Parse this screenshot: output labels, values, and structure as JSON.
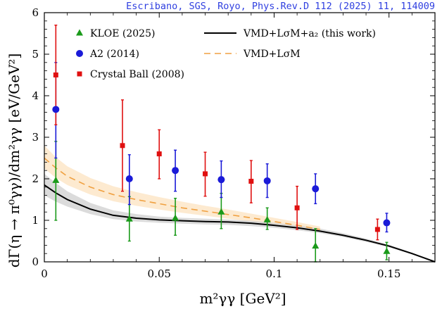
{
  "citation": "Escribano, SGS, Royo, Phys.Rev.D 112 (2025) 11, 114009",
  "chart_data": {
    "type": "scatter",
    "xlabel": "m²γγ [GeV²]",
    "ylabel": "dΓ(η → π⁰γγ)/dm²γγ   [eV/GeV²]",
    "xlim": [
      0,
      0.17
    ],
    "ylim": [
      0,
      6
    ],
    "xticks": [
      0,
      0.05,
      0.1,
      0.15
    ],
    "xtick_labels": [
      "0",
      "0.05",
      "0.1",
      "0.15"
    ],
    "yticks": [
      0,
      1,
      2,
      3,
      4,
      5,
      6
    ],
    "ytick_labels": [
      "0",
      "1",
      "2",
      "3",
      "4",
      "5",
      "6"
    ],
    "legend_position": "top",
    "series": [
      {
        "name": "KLOE (2025)",
        "marker": "triangle",
        "color": "#1a9a1a",
        "points": [
          {
            "x": 0.005,
            "y": 1.96,
            "lo": 1.0,
            "hi": 2.9
          },
          {
            "x": 0.037,
            "y": 1.03,
            "lo": 0.5,
            "hi": 1.57
          },
          {
            "x": 0.057,
            "y": 1.05,
            "lo": 0.64,
            "hi": 1.53
          },
          {
            "x": 0.077,
            "y": 1.2,
            "lo": 0.8,
            "hi": 1.65
          },
          {
            "x": 0.097,
            "y": 1.01,
            "lo": 0.78,
            "hi": 1.3
          },
          {
            "x": 0.118,
            "y": 0.38,
            "lo": 0.0,
            "hi": 0.8
          },
          {
            "x": 0.149,
            "y": 0.25,
            "lo": 0.05,
            "hi": 0.47
          }
        ]
      },
      {
        "name": "A2 (2014)",
        "marker": "circle",
        "color": "#1a1ad8",
        "points": [
          {
            "x": 0.005,
            "y": 3.67,
            "lo": 2.5,
            "hi": 4.8
          },
          {
            "x": 0.037,
            "y": 2.0,
            "lo": 1.38,
            "hi": 2.58
          },
          {
            "x": 0.057,
            "y": 2.2,
            "lo": 1.7,
            "hi": 2.69
          },
          {
            "x": 0.077,
            "y": 1.98,
            "lo": 1.55,
            "hi": 2.43
          },
          {
            "x": 0.097,
            "y": 1.95,
            "lo": 1.55,
            "hi": 2.36
          },
          {
            "x": 0.118,
            "y": 1.76,
            "lo": 1.4,
            "hi": 2.12
          },
          {
            "x": 0.149,
            "y": 0.94,
            "lo": 0.72,
            "hi": 1.17
          }
        ]
      },
      {
        "name": "Crystal Ball (2008)",
        "marker": "square",
        "color": "#e01010",
        "points": [
          {
            "x": 0.005,
            "y": 4.5,
            "lo": 3.3,
            "hi": 5.7
          },
          {
            "x": 0.034,
            "y": 2.8,
            "lo": 1.7,
            "hi": 3.9
          },
          {
            "x": 0.05,
            "y": 2.6,
            "lo": 2.0,
            "hi": 3.18
          },
          {
            "x": 0.07,
            "y": 2.12,
            "lo": 1.58,
            "hi": 2.64
          },
          {
            "x": 0.09,
            "y": 1.94,
            "lo": 1.42,
            "hi": 2.44
          },
          {
            "x": 0.11,
            "y": 1.3,
            "lo": 0.78,
            "hi": 1.82
          },
          {
            "x": 0.145,
            "y": 0.78,
            "lo": 0.53,
            "hi": 1.03
          }
        ]
      }
    ],
    "curves": [
      {
        "name": "VMD+LσM+a₂ (this work)",
        "style": "solid",
        "color": "#000000",
        "band_color": "#cfcfcf",
        "x": [
          0,
          0.005,
          0.01,
          0.02,
          0.03,
          0.04,
          0.05,
          0.06,
          0.07,
          0.08,
          0.09,
          0.1,
          0.11,
          0.12,
          0.13,
          0.14,
          0.15,
          0.16,
          0.165,
          0.17
        ],
        "y": [
          1.85,
          1.66,
          1.5,
          1.27,
          1.12,
          1.05,
          1.01,
          0.99,
          0.97,
          0.96,
          0.93,
          0.88,
          0.82,
          0.74,
          0.64,
          0.52,
          0.38,
          0.2,
          0.1,
          0.0
        ],
        "band_lo": [
          1.6,
          1.45,
          1.33,
          1.15,
          1.03,
          0.97,
          0.94,
          0.92,
          0.9,
          0.89,
          0.86,
          0.82,
          0.76,
          0.69,
          0.6,
          0.48,
          0.35,
          0.18,
          0.09,
          0.0
        ],
        "band_hi": [
          2.12,
          1.9,
          1.7,
          1.42,
          1.24,
          1.15,
          1.09,
          1.06,
          1.04,
          1.02,
          0.99,
          0.94,
          0.88,
          0.8,
          0.69,
          0.56,
          0.41,
          0.22,
          0.11,
          0.0
        ]
      },
      {
        "name": "VMD+LσM",
        "style": "dashed",
        "color": "#f0a040",
        "band_color": "#fde6c8",
        "x": [
          0,
          0.005,
          0.01,
          0.02,
          0.03,
          0.04,
          0.05,
          0.06,
          0.07,
          0.08,
          0.09,
          0.1,
          0.11,
          0.12
        ],
        "y": [
          2.5,
          2.26,
          2.06,
          1.8,
          1.62,
          1.5,
          1.4,
          1.3,
          1.22,
          1.14,
          1.06,
          0.97,
          0.88,
          0.78
        ],
        "band_lo": [
          2.25,
          2.02,
          1.85,
          1.62,
          1.46,
          1.35,
          1.26,
          1.18,
          1.11,
          1.04,
          0.97,
          0.89,
          0.81,
          0.72
        ],
        "band_hi": [
          2.8,
          2.52,
          2.3,
          2.02,
          1.82,
          1.68,
          1.56,
          1.45,
          1.35,
          1.26,
          1.16,
          1.06,
          0.96,
          0.85
        ]
      }
    ]
  }
}
